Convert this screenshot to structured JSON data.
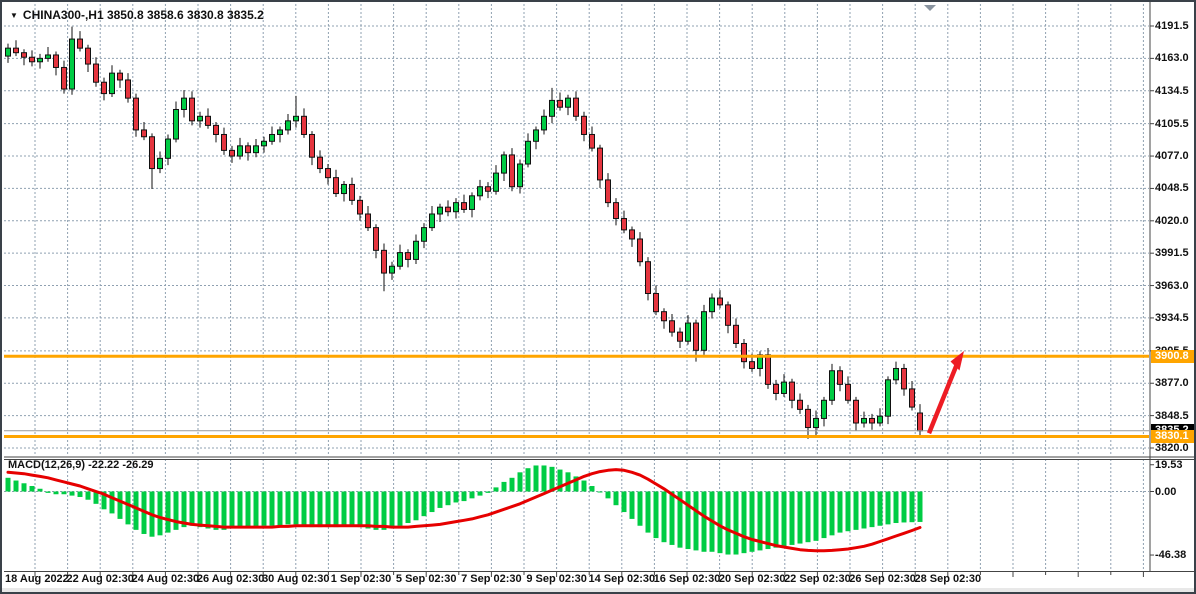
{
  "window": {
    "title": "CHINA300-,H1 3850.8 3858.6 3830.8 3835.2",
    "dropdown_icon": "▼"
  },
  "indicator": {
    "label": "MACD(12,26,9) -22.22 -26.29",
    "axis_labels": [
      {
        "text": "19.53",
        "value": 19.53
      },
      {
        "text": "0.00",
        "value": 0
      },
      {
        "text": "-46.38",
        "value": -46.38
      }
    ]
  },
  "price_axis": {
    "labels": [
      "4191.5",
      "4163.0",
      "4134.5",
      "4105.5",
      "4077.0",
      "4048.5",
      "4020.0",
      "3991.5",
      "3963.0",
      "3934.5",
      "3905.5",
      "3877.0",
      "3848.5",
      "3820.0"
    ]
  },
  "time_axis": {
    "labels": [
      "18 Aug 2022",
      "22 Aug 02:30",
      "24 Aug 02:30",
      "26 Aug 02:30",
      "30 Aug 02:30",
      "1 Sep 02:30",
      "5 Sep 02:30",
      "7 Sep 02:30",
      "9 Sep 02:30",
      "14 Sep 02:30",
      "16 Sep 02:30",
      "20 Sep 02:30",
      "22 Sep 02:30",
      "26 Sep 02:30",
      "28 Sep 02:30"
    ]
  },
  "price_labels": {
    "resistance": "3900.8",
    "support": "3830.1",
    "current": "3835.2"
  },
  "colors": {
    "bull": "#00CC44",
    "bear": "#E5353F",
    "wick": "#111111",
    "grid": "#8FA0B1",
    "orange": "#FFA500",
    "signal": "#E60000",
    "histogram": "#00CC44",
    "arrow": "#ED1C24",
    "current_line": "#999999",
    "frame": "#444444"
  },
  "chart_data": {
    "type": "candlestick",
    "title": "CHINA300-,H1",
    "symbol": "CHINA300-",
    "timeframe": "H1",
    "price_range": [
      3820.0,
      4191.5
    ],
    "macd_range": [
      -46.38,
      19.53
    ],
    "hlines": [
      3900.8,
      3830.1
    ],
    "current_price": 3835.2,
    "annotation_arrow": {
      "from_price": 3833,
      "to_price": 3898,
      "direction": "up"
    },
    "candles": [
      [
        4165,
        4176,
        4159,
        4172
      ],
      [
        4172,
        4179,
        4165,
        4168
      ],
      [
        4168,
        4171,
        4157,
        4164
      ],
      [
        4164,
        4170,
        4156,
        4160
      ],
      [
        4160,
        4167,
        4154,
        4163
      ],
      [
        4163,
        4173,
        4160,
        4166
      ],
      [
        4166,
        4169,
        4148,
        4155
      ],
      [
        4155,
        4161,
        4132,
        4136
      ],
      [
        4136,
        4191,
        4131,
        4180
      ],
      [
        4180,
        4187,
        4169,
        4172
      ],
      [
        4172,
        4175,
        4151,
        4158
      ],
      [
        4158,
        4164,
        4138,
        4142
      ],
      [
        4142,
        4146,
        4126,
        4132
      ],
      [
        4132,
        4157,
        4129,
        4150
      ],
      [
        4150,
        4153,
        4137,
        4144
      ],
      [
        4144,
        4150,
        4124,
        4128
      ],
      [
        4128,
        4132,
        4094,
        4100
      ],
      [
        4100,
        4107,
        4091,
        4094
      ],
      [
        4094,
        4097,
        4048,
        4066
      ],
      [
        4066,
        4081,
        4062,
        4075
      ],
      [
        4075,
        4096,
        4069,
        4092
      ],
      [
        4092,
        4125,
        4089,
        4118
      ],
      [
        4118,
        4135,
        4111,
        4128
      ],
      [
        4128,
        4134,
        4104,
        4108
      ],
      [
        4108,
        4116,
        4102,
        4112
      ],
      [
        4112,
        4119,
        4101,
        4104
      ],
      [
        4104,
        4107,
        4089,
        4096
      ],
      [
        4096,
        4102,
        4078,
        4082
      ],
      [
        4082,
        4086,
        4071,
        4077
      ],
      [
        4077,
        4093,
        4074,
        4086
      ],
      [
        4086,
        4089,
        4073,
        4080
      ],
      [
        4080,
        4092,
        4076,
        4086
      ],
      [
        4086,
        4094,
        4080,
        4090
      ],
      [
        4090,
        4103,
        4087,
        4096
      ],
      [
        4096,
        4103,
        4089,
        4100
      ],
      [
        4100,
        4114,
        4096,
        4108
      ],
      [
        4108,
        4130,
        4102,
        4112
      ],
      [
        4112,
        4119,
        4093,
        4096
      ],
      [
        4096,
        4099,
        4069,
        4076
      ],
      [
        4076,
        4082,
        4062,
        4066
      ],
      [
        4066,
        4070,
        4052,
        4058
      ],
      [
        4058,
        4065,
        4041,
        4044
      ],
      [
        4044,
        4055,
        4037,
        4052
      ],
      [
        4052,
        4058,
        4034,
        4038
      ],
      [
        4038,
        4042,
        4020,
        4026
      ],
      [
        4026,
        4033,
        4011,
        4014
      ],
      [
        4014,
        4017,
        3987,
        3994
      ],
      [
        3994,
        4000,
        3958,
        3974
      ],
      [
        3974,
        3984,
        3968,
        3980
      ],
      [
        3980,
        3999,
        3977,
        3992
      ],
      [
        3992,
        3995,
        3979,
        3986
      ],
      [
        3986,
        4008,
        3982,
        4002
      ],
      [
        4002,
        4018,
        3996,
        4014
      ],
      [
        4014,
        4033,
        4011,
        4026
      ],
      [
        4026,
        4035,
        4019,
        4032
      ],
      [
        4032,
        4038,
        4024,
        4028
      ],
      [
        4028,
        4040,
        4022,
        4036
      ],
      [
        4036,
        4043,
        4027,
        4030
      ],
      [
        4030,
        4045,
        4023,
        4042
      ],
      [
        4042,
        4056,
        4038,
        4050
      ],
      [
        4050,
        4054,
        4040,
        4046
      ],
      [
        4046,
        4069,
        4043,
        4062
      ],
      [
        4062,
        4081,
        4055,
        4078
      ],
      [
        4078,
        4084,
        4046,
        4050
      ],
      [
        4050,
        4074,
        4044,
        4070
      ],
      [
        4070,
        4097,
        4067,
        4090
      ],
      [
        4090,
        4103,
        4083,
        4100
      ],
      [
        4100,
        4118,
        4096,
        4112
      ],
      [
        4112,
        4137,
        4106,
        4126
      ],
      [
        4126,
        4133,
        4117,
        4120
      ],
      [
        4120,
        4131,
        4113,
        4128
      ],
      [
        4128,
        4134,
        4108,
        4112
      ],
      [
        4112,
        4116,
        4090,
        4096
      ],
      [
        4096,
        4103,
        4081,
        4084
      ],
      [
        4084,
        4087,
        4049,
        4056
      ],
      [
        4056,
        4062,
        4032,
        4036
      ],
      [
        4036,
        4040,
        4016,
        4022
      ],
      [
        4022,
        4029,
        4009,
        4012
      ],
      [
        4012,
        4015,
        3997,
        4004
      ],
      [
        4004,
        4010,
        3980,
        3984
      ],
      [
        3984,
        3988,
        3950,
        3956
      ],
      [
        3956,
        3963,
        3937,
        3940
      ],
      [
        3940,
        3943,
        3925,
        3932
      ],
      [
        3932,
        3938,
        3918,
        3922
      ],
      [
        3922,
        3926,
        3908,
        3914
      ],
      [
        3914,
        3937,
        3911,
        3930
      ],
      [
        3930,
        3933,
        3896,
        3906
      ],
      [
        3906,
        3946,
        3902,
        3940
      ],
      [
        3940,
        3956,
        3934,
        3952
      ],
      [
        3952,
        3959,
        3943,
        3946
      ],
      [
        3946,
        3949,
        3921,
        3928
      ],
      [
        3928,
        3934,
        3908,
        3912
      ],
      [
        3912,
        3916,
        3890,
        3896
      ],
      [
        3896,
        3903,
        3887,
        3890
      ],
      [
        3890,
        3905,
        3883,
        3902
      ],
      [
        3902,
        3908,
        3872,
        3876
      ],
      [
        3876,
        3880,
        3862,
        3868
      ],
      [
        3868,
        3885,
        3865,
        3878
      ],
      [
        3878,
        3881,
        3855,
        3862
      ],
      [
        3862,
        3868,
        3850,
        3854
      ],
      [
        3854,
        3858,
        3828,
        3838
      ],
      [
        3838,
        3853,
        3830,
        3846
      ],
      [
        3846,
        3865,
        3839,
        3862
      ],
      [
        3862,
        3894,
        3858,
        3888
      ],
      [
        3888,
        3892,
        3870,
        3876
      ],
      [
        3876,
        3883,
        3859,
        3862
      ],
      [
        3862,
        3865,
        3835,
        3842
      ],
      [
        3842,
        3852,
        3838,
        3846
      ],
      [
        3846,
        3850,
        3836,
        3842
      ],
      [
        3842,
        3855,
        3839,
        3848
      ],
      [
        3848,
        3883,
        3841,
        3880
      ],
      [
        3880,
        3896,
        3876,
        3890
      ],
      [
        3890,
        3894,
        3866,
        3872
      ],
      [
        3872,
        3879,
        3853,
        3856
      ],
      [
        3850.8,
        3858.6,
        3830.8,
        3835.2
      ]
    ],
    "macd_histogram": [
      10,
      8,
      6,
      4,
      2,
      -1,
      -2,
      -2,
      -3,
      -4,
      -6,
      -9,
      -13,
      -16,
      -20,
      -24,
      -28,
      -31,
      -33,
      -32,
      -30,
      -28,
      -26,
      -25,
      -26,
      -27,
      -28,
      -28,
      -27,
      -26,
      -26,
      -26,
      -25,
      -25,
      -25,
      -24,
      -24,
      -25,
      -26,
      -26,
      -26,
      -26,
      -25,
      -25,
      -26,
      -27,
      -28,
      -28,
      -27,
      -25,
      -23,
      -21,
      -18,
      -15,
      -12,
      -10,
      -8,
      -7,
      -5,
      -3,
      -1,
      3,
      7,
      10,
      14,
      17,
      19,
      19,
      18,
      16,
      14,
      11,
      8,
      4,
      0,
      -5,
      -10,
      -15,
      -20,
      -25,
      -30,
      -34,
      -37,
      -39,
      -41,
      -42,
      -43,
      -44,
      -44,
      -45,
      -46,
      -46,
      -45,
      -44,
      -43,
      -42,
      -41,
      -40,
      -39,
      -38,
      -37,
      -36,
      -34,
      -32,
      -30,
      -29,
      -28,
      -27,
      -26,
      -25,
      -24,
      -23,
      -22.6,
      -22.4,
      -22.22
    ],
    "macd_signal": [
      14,
      13.5,
      13,
      12,
      11,
      10,
      8.5,
      7,
      5.5,
      4,
      2,
      0,
      -2,
      -4.5,
      -7,
      -9.5,
      -12,
      -14.5,
      -17,
      -19,
      -20.5,
      -22,
      -23,
      -24,
      -24.5,
      -25,
      -25.5,
      -26,
      -26,
      -26,
      -26,
      -26,
      -26,
      -26,
      -25.5,
      -25.5,
      -25,
      -25,
      -25,
      -25,
      -25,
      -25,
      -25,
      -25,
      -25,
      -25,
      -25.5,
      -25.5,
      -26,
      -26,
      -26,
      -25.5,
      -25,
      -24.5,
      -24,
      -23,
      -22,
      -21,
      -20,
      -18.5,
      -17,
      -15,
      -13,
      -11,
      -9,
      -6.5,
      -4,
      -1.5,
      1,
      3.5,
      6,
      8.5,
      11,
      13,
      14.5,
      15.5,
      16,
      15.5,
      14,
      12,
      9,
      5.5,
      2,
      -2,
      -6,
      -10,
      -14,
      -18,
      -21.5,
      -25,
      -28,
      -30.5,
      -33,
      -35,
      -36.5,
      -38,
      -39.5,
      -40.5,
      -41.5,
      -42.5,
      -43,
      -43.2,
      -43.2,
      -43,
      -42.5,
      -42,
      -41,
      -40,
      -38.5,
      -36.5,
      -34.5,
      -32.5,
      -30.5,
      -28.5,
      -26.29
    ]
  }
}
